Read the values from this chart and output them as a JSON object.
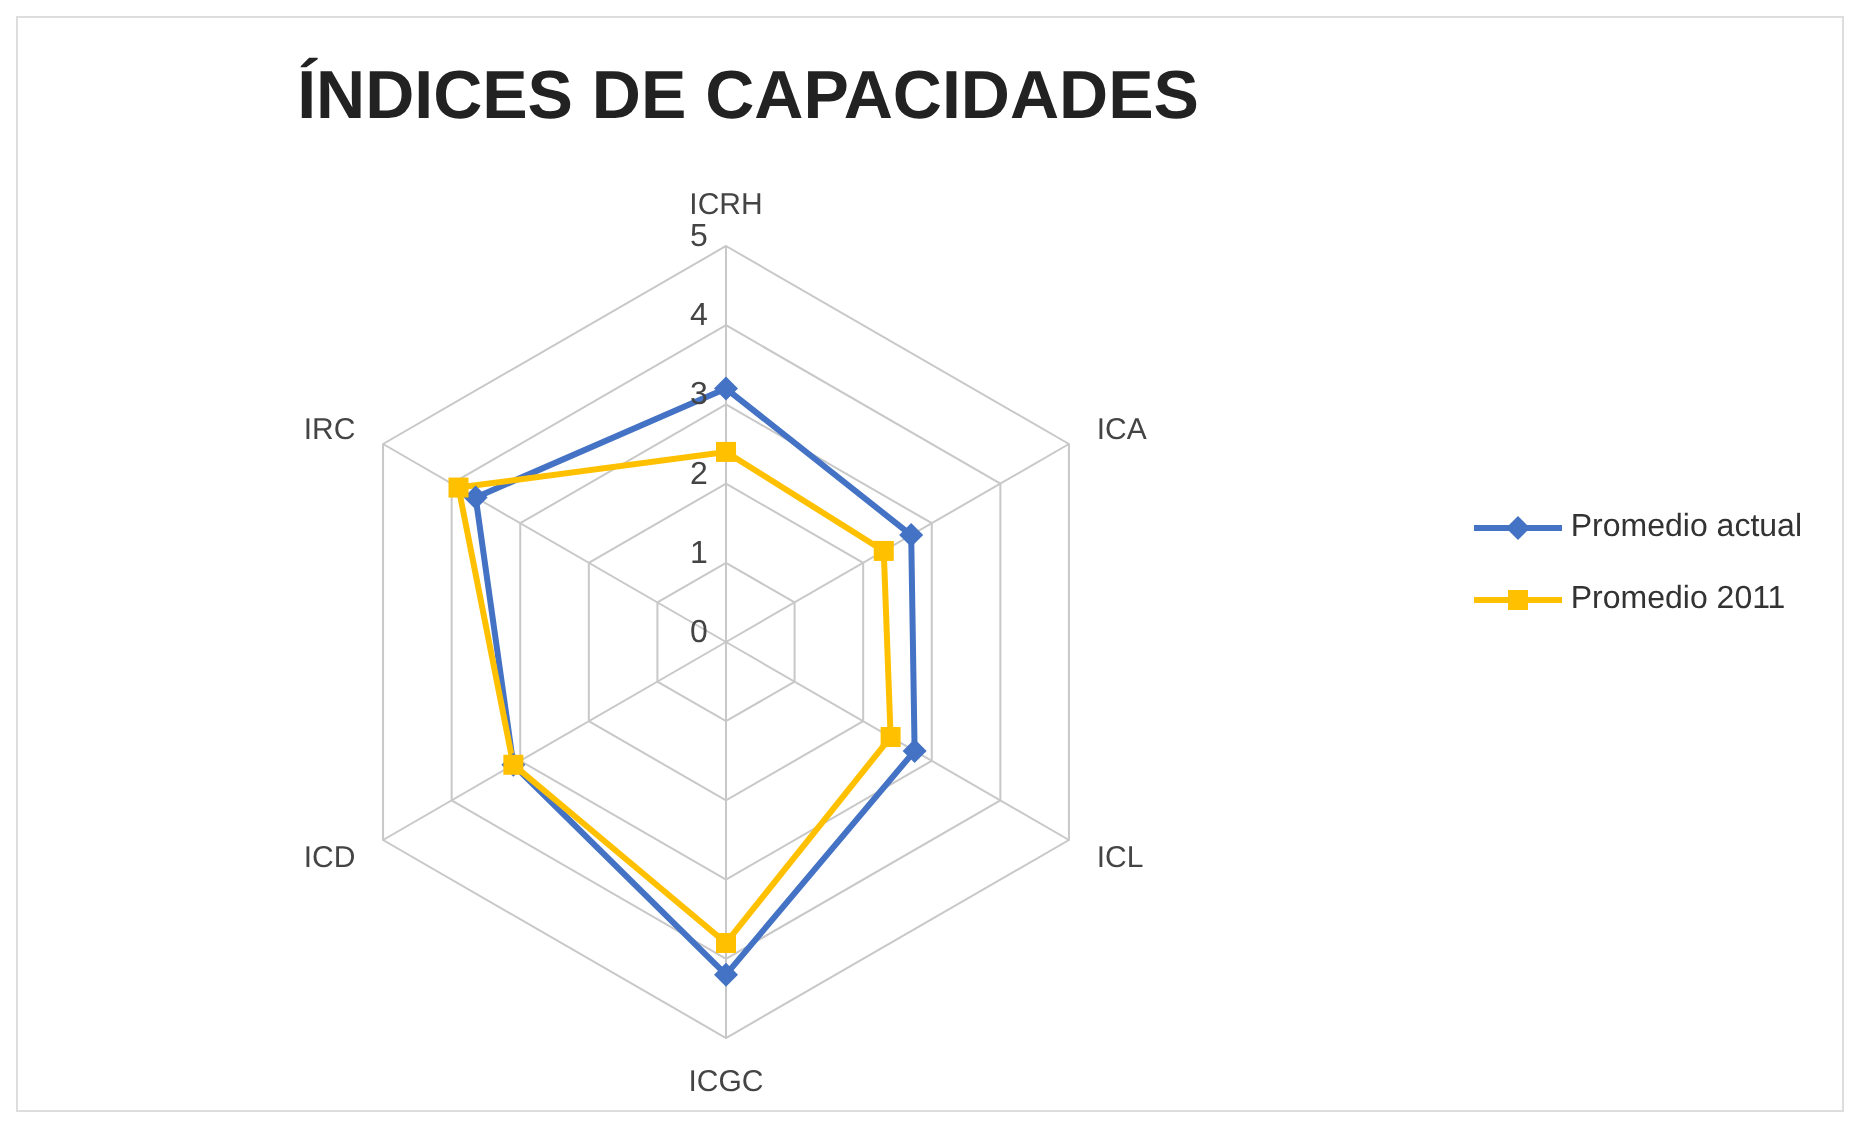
{
  "chart_data": {
    "type": "radar",
    "title": "ÍNDICES DE CAPACIDADES",
    "categories": [
      "ICRH",
      "ICA",
      "ICL",
      "ICGC",
      "ICD",
      "IRC"
    ],
    "series": [
      {
        "name": "Promedio actual",
        "color": "#4472c4",
        "marker": "diamond",
        "values": [
          3.2,
          2.7,
          2.75,
          4.2,
          3.1,
          3.65
        ]
      },
      {
        "name": "Promedio 2011",
        "color": "#ffc000",
        "marker": "square",
        "values": [
          2.4,
          2.3,
          2.4,
          3.8,
          3.1,
          3.9
        ]
      }
    ],
    "ylim": [
      0,
      5
    ],
    "yticks": [
      0,
      1,
      2,
      3,
      4,
      5
    ],
    "grid": true,
    "legend": "right"
  }
}
